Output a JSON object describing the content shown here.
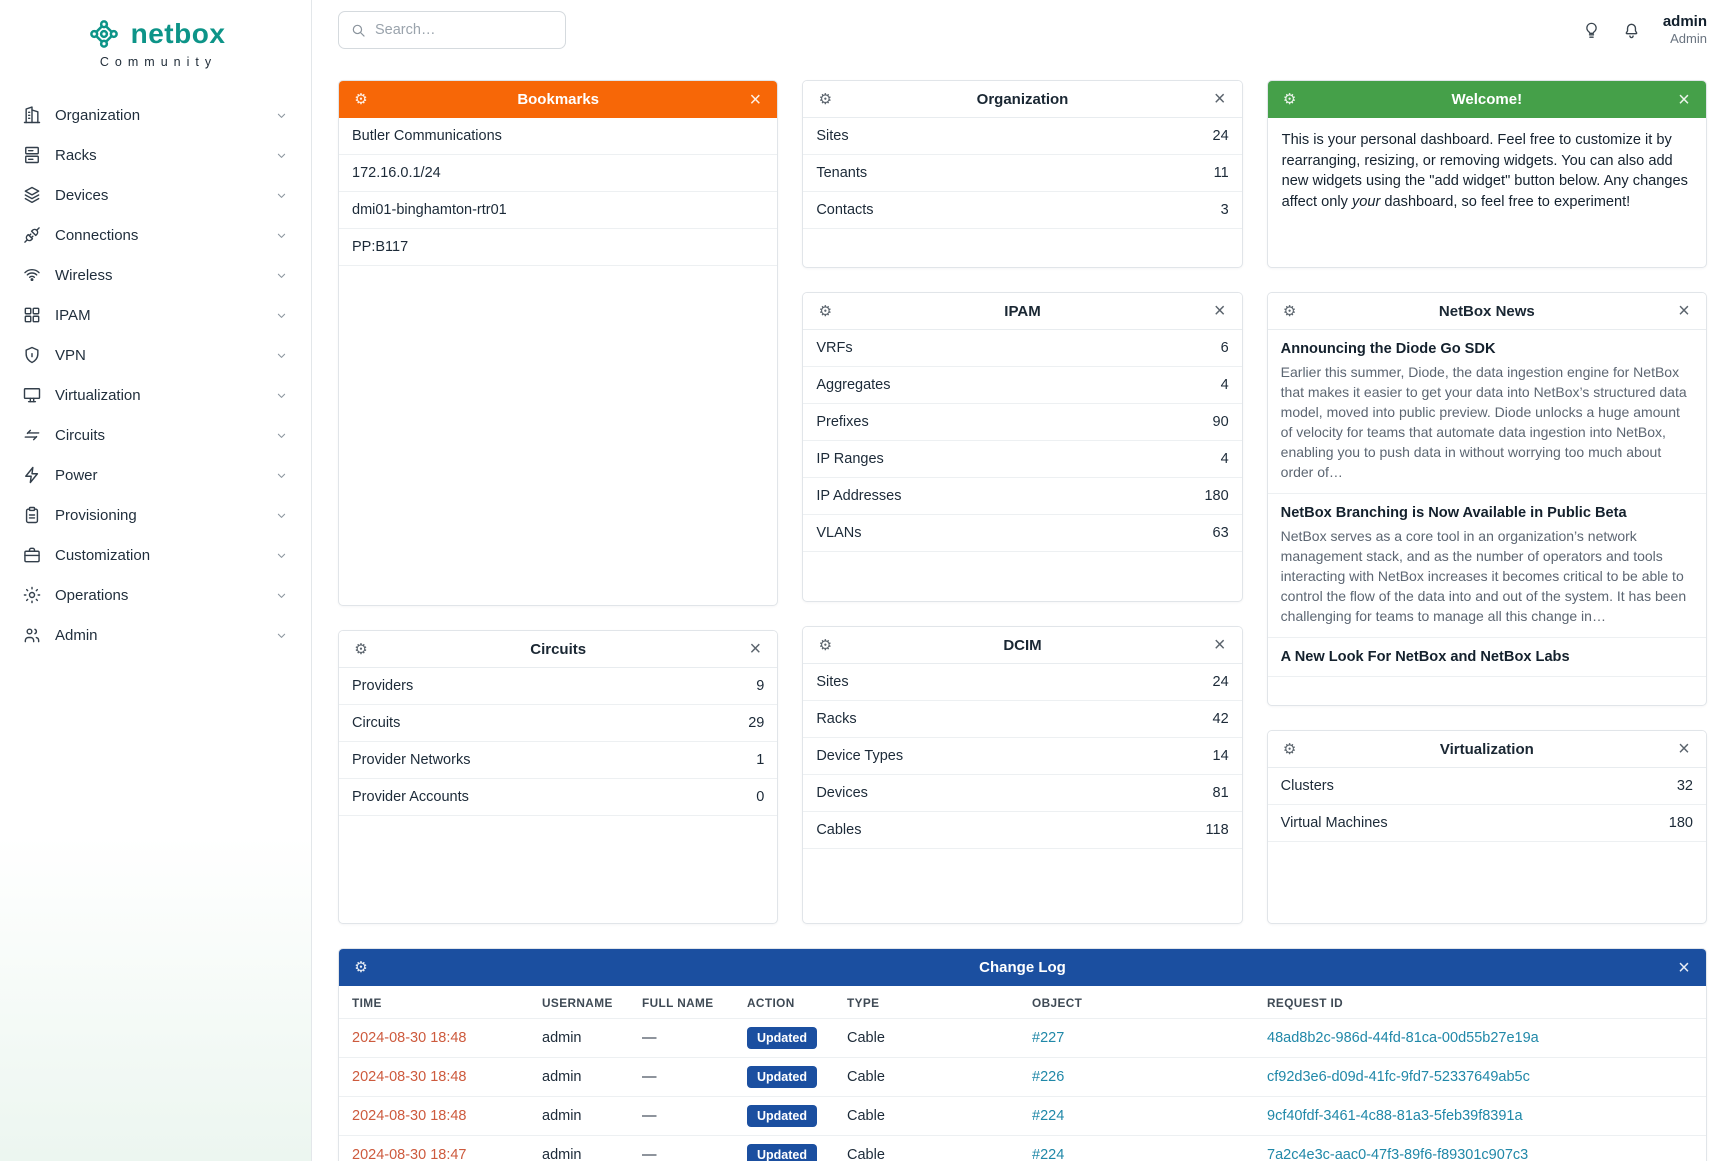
{
  "brand": {
    "name": "netbox",
    "subtitle": "Community"
  },
  "topbar": {
    "search_placeholder": "Search…",
    "user": {
      "name": "admin",
      "role": "Admin"
    }
  },
  "icons": {
    "gear_glyph": "⚙",
    "close_glyph": "×"
  },
  "colors": {
    "brand": "#0d9488",
    "bookmarks_header": "#f76707",
    "welcome_header": "#45a049",
    "changelog_header": "#1b4fa0",
    "action_badge": "#1b4fa0",
    "link_teal": "#2088a8",
    "link_warm": "#cd5a3d"
  },
  "sidebar": {
    "items": [
      {
        "label": "Organization",
        "icon": "building"
      },
      {
        "label": "Racks",
        "icon": "rack"
      },
      {
        "label": "Devices",
        "icon": "devices"
      },
      {
        "label": "Connections",
        "icon": "connections"
      },
      {
        "label": "Wireless",
        "icon": "wireless"
      },
      {
        "label": "IPAM",
        "icon": "ipam"
      },
      {
        "label": "VPN",
        "icon": "vpn"
      },
      {
        "label": "Virtualization",
        "icon": "virtualization"
      },
      {
        "label": "Circuits",
        "icon": "circuits"
      },
      {
        "label": "Power",
        "icon": "power"
      },
      {
        "label": "Provisioning",
        "icon": "provisioning"
      },
      {
        "label": "Customization",
        "icon": "customization"
      },
      {
        "label": "Operations",
        "icon": "operations"
      },
      {
        "label": "Admin",
        "icon": "admin"
      }
    ]
  },
  "widgets": {
    "bookmarks": {
      "title": "Bookmarks",
      "items": [
        "Butler Communications",
        "172.16.0.1/24",
        "dmi01-binghamton-rtr01",
        "PP:B117"
      ]
    },
    "circuits": {
      "title": "Circuits",
      "rows": [
        [
          "Providers",
          "9"
        ],
        [
          "Circuits",
          "29"
        ],
        [
          "Provider Networks",
          "1"
        ],
        [
          "Provider Accounts",
          "0"
        ]
      ]
    },
    "organization": {
      "title": "Organization",
      "rows": [
        [
          "Sites",
          "24"
        ],
        [
          "Tenants",
          "11"
        ],
        [
          "Contacts",
          "3"
        ]
      ]
    },
    "ipam": {
      "title": "IPAM",
      "rows": [
        [
          "VRFs",
          "6"
        ],
        [
          "Aggregates",
          "4"
        ],
        [
          "Prefixes",
          "90"
        ],
        [
          "IP Ranges",
          "4"
        ],
        [
          "IP Addresses",
          "180"
        ],
        [
          "VLANs",
          "63"
        ]
      ]
    },
    "dcim": {
      "title": "DCIM",
      "rows": [
        [
          "Sites",
          "24"
        ],
        [
          "Racks",
          "42"
        ],
        [
          "Device Types",
          "14"
        ],
        [
          "Devices",
          "81"
        ],
        [
          "Cables",
          "118"
        ]
      ]
    },
    "virtualization": {
      "title": "Virtualization",
      "rows": [
        [
          "Clusters",
          "32"
        ],
        [
          "Virtual Machines",
          "180"
        ]
      ]
    },
    "welcome": {
      "title": "Welcome!",
      "paragraph": [
        {
          "text": "This is your personal dashboard. Feel free to customize it by rearranging, resizing, or removing widgets. You can also add new widgets using the \"add widget\" button below. Any changes affect only "
        },
        {
          "text": "your",
          "italic": true
        },
        {
          "text": " dashboard, so feel free to experiment!"
        }
      ]
    },
    "news": {
      "title": "NetBox News",
      "items": [
        {
          "headline": "Announcing the Diode Go SDK",
          "body": "Earlier this summer, Diode, the data ingestion engine for NetBox that makes it easier to get your data into NetBox’s structured data model, moved into public preview. Diode unlocks a huge amount of velocity for teams that automate data ingestion into NetBox, enabling you to push data in without worrying too much about order of…"
        },
        {
          "headline": "NetBox Branching is Now Available in Public Beta",
          "body": "NetBox serves as a core tool in an organization’s network management stack, and as the number of operators and tools interacting with NetBox increases it becomes critical to be able to control the flow of the data into and out of the system. It has been challenging for teams to manage all this change in…"
        },
        {
          "headline": "A New Look For NetBox and NetBox Labs",
          "body": ""
        }
      ]
    },
    "changelog": {
      "title": "Change Log",
      "columns": [
        "TIME",
        "USERNAME",
        "FULL NAME",
        "ACTION",
        "TYPE",
        "OBJECT",
        "REQUEST ID"
      ],
      "rows": [
        {
          "time": "2024-08-30 18:48",
          "username": "admin",
          "full_name": "—",
          "action": "Updated",
          "type": "Cable",
          "object": "#227",
          "request_id": "48ad8b2c-986d-44fd-81ca-00d55b27e19a"
        },
        {
          "time": "2024-08-30 18:48",
          "username": "admin",
          "full_name": "—",
          "action": "Updated",
          "type": "Cable",
          "object": "#226",
          "request_id": "cf92d3e6-d09d-41fc-9fd7-52337649ab5c"
        },
        {
          "time": "2024-08-30 18:48",
          "username": "admin",
          "full_name": "—",
          "action": "Updated",
          "type": "Cable",
          "object": "#224",
          "request_id": "9cf40fdf-3461-4c88-81a3-5feb39f8391a"
        },
        {
          "time": "2024-08-30 18:47",
          "username": "admin",
          "full_name": "—",
          "action": "Updated",
          "type": "Cable",
          "object": "#224",
          "request_id": "7a2c4e3c-aac0-47f3-89f6-f89301c907c3"
        }
      ]
    }
  }
}
